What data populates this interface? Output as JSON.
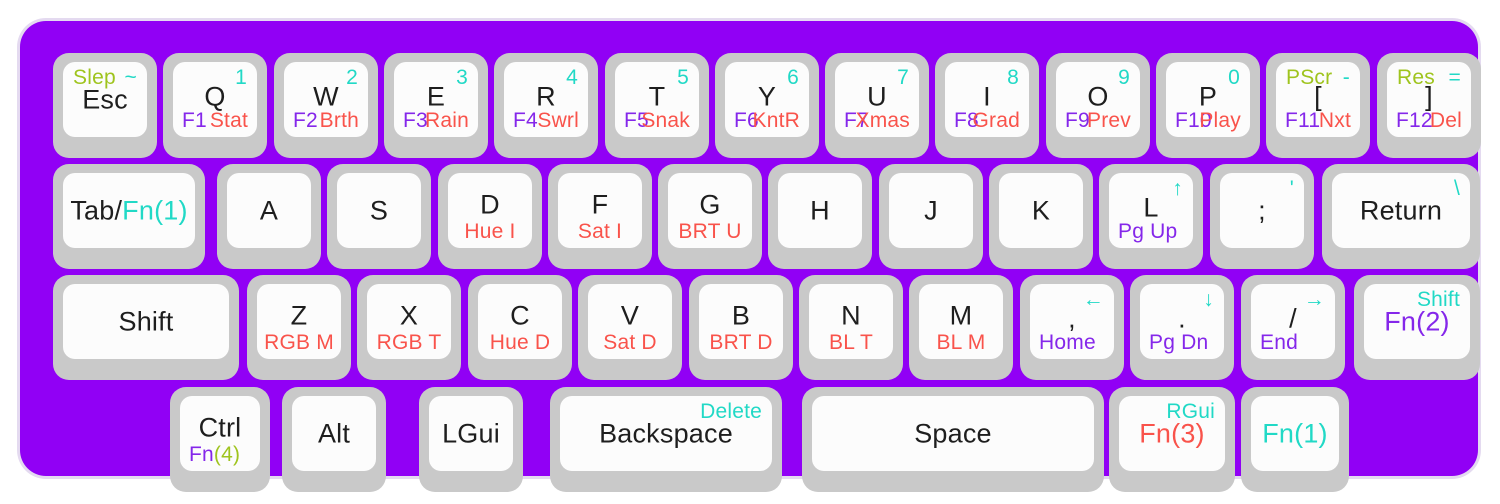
{
  "colors": {
    "board_purple": "#9100F5",
    "key_gray": "#C9C9C9",
    "key_face": "#FCFCFC",
    "black": "#1E1E1E",
    "cyan": "#21D9C6",
    "purple": "#8527EA",
    "red": "#F9534B",
    "green": "#9FC41E"
  },
  "keyboard": {
    "rows": [
      {
        "keys": [
          {
            "name": "key-esc",
            "tl": "Slep",
            "tr": "~",
            "c": "Esc"
          },
          {
            "name": "key-q",
            "tr": "1",
            "c": "Q",
            "bl": "F1",
            "br": "Stat"
          },
          {
            "name": "key-w",
            "tr": "2",
            "c": "W",
            "bl": "F2",
            "br": "Brth"
          },
          {
            "name": "key-e",
            "tr": "3",
            "c": "E",
            "bl": "F3",
            "br": "Rain"
          },
          {
            "name": "key-r",
            "tr": "4",
            "c": "R",
            "bl": "F4",
            "br": "Swrl"
          },
          {
            "name": "key-t",
            "tr": "5",
            "c": "T",
            "bl": "F5",
            "br": "Snak"
          },
          {
            "name": "key-y",
            "tr": "6",
            "c": "Y",
            "bl": "F6",
            "br": "KntR"
          },
          {
            "name": "key-u",
            "tr": "7",
            "c": "U",
            "bl": "F7",
            "br": "Xmas"
          },
          {
            "name": "key-i",
            "tr": "8",
            "c": "I",
            "bl": "F8",
            "br": "Grad"
          },
          {
            "name": "key-o",
            "tr": "9",
            "c": "O",
            "bl": "F9",
            "br": "Prev"
          },
          {
            "name": "key-p",
            "tr": "0",
            "c": "P",
            "bl": "F10",
            "br": "Play"
          },
          {
            "name": "key-lbracket",
            "tl": "PScr",
            "tr": "-",
            "c": "[",
            "bl": "F11",
            "br": "Nxt"
          },
          {
            "name": "key-rbracket",
            "tl": "Res",
            "tr": "=",
            "c": "]",
            "bl": "F12",
            "br": "Del"
          }
        ]
      },
      {
        "keys": [
          {
            "name": "key-tab-fn1",
            "c": [
              {
                "t": "Tab/",
                "color": "black"
              },
              {
                "t": "Fn(1)",
                "color": "cyan"
              }
            ]
          },
          {
            "name": "key-a",
            "c": "A"
          },
          {
            "name": "key-s",
            "c": "S"
          },
          {
            "name": "key-d",
            "c": "D",
            "bc": "Hue I"
          },
          {
            "name": "key-f",
            "c": "F",
            "bc": "Sat I"
          },
          {
            "name": "key-g",
            "c": "G",
            "bc": "BRT U"
          },
          {
            "name": "key-h",
            "c": "H"
          },
          {
            "name": "key-j",
            "c": "J"
          },
          {
            "name": "key-k",
            "c": "K"
          },
          {
            "name": "key-l",
            "tr": "↑",
            "c": "L",
            "bl": "Pg Up"
          },
          {
            "name": "key-semicolon",
            "tr": "'",
            "c": ";"
          },
          {
            "name": "key-return",
            "tr": "\\",
            "c": "Return"
          }
        ]
      },
      {
        "keys": [
          {
            "name": "key-shift-left",
            "c": "Shift"
          },
          {
            "name": "key-z",
            "c": "Z",
            "bc": "RGB M"
          },
          {
            "name": "key-x",
            "c": "X",
            "bc": "RGB T"
          },
          {
            "name": "key-c",
            "c": "C",
            "bc": "Hue D"
          },
          {
            "name": "key-v",
            "c": "V",
            "bc": "Sat D"
          },
          {
            "name": "key-b",
            "c": "B",
            "bc": "BRT D"
          },
          {
            "name": "key-n",
            "c": "N",
            "bc": "BL T"
          },
          {
            "name": "key-m",
            "c": "M",
            "bc": "BL M"
          },
          {
            "name": "key-comma",
            "tr": "←",
            "c": ",",
            "bl": "Home"
          },
          {
            "name": "key-period",
            "tr": "↓",
            "c": ".",
            "bl": "Pg Dn"
          },
          {
            "name": "key-slash",
            "tr": "→",
            "c": "/",
            "bl": "End"
          },
          {
            "name": "key-shift-fn2",
            "tr": "Shift",
            "c": [
              {
                "t": "Fn(2)",
                "color": "purple"
              }
            ]
          }
        ]
      },
      {
        "keys": [
          {
            "name": "key-ctrl-fn4",
            "c": "Ctrl",
            "bl": [
              {
                "t": "Fn",
                "color": "purple"
              },
              {
                "t": "(4)",
                "color": "green"
              }
            ]
          },
          {
            "name": "key-alt",
            "c": "Alt"
          },
          {
            "name": "key-lgui",
            "c": "LGui"
          },
          {
            "name": "key-backspace",
            "tr": "Delete",
            "c": "Backspace"
          },
          {
            "name": "key-space",
            "c": "Space"
          },
          {
            "name": "key-fn3-rgui",
            "tr": "RGui",
            "c": [
              {
                "t": "Fn(3)",
                "color": "red"
              }
            ]
          },
          {
            "name": "key-fn1",
            "c": [
              {
                "t": "Fn(1)",
                "color": "cyan"
              }
            ]
          }
        ]
      }
    ]
  }
}
